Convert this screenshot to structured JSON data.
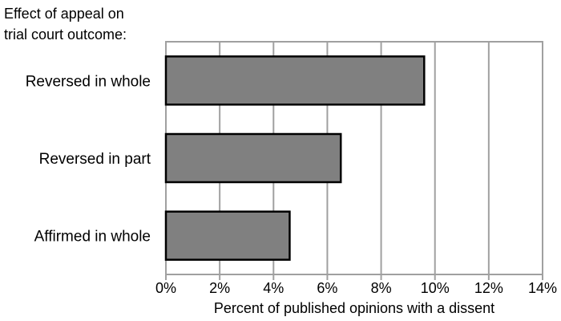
{
  "chart_data": {
    "type": "bar",
    "orientation": "horizontal",
    "title": "",
    "ylabel_lines": [
      "Effect of appeal on",
      "trial court outcome:"
    ],
    "xlabel": "Percent of published opinions with a dissent",
    "categories": [
      "Reversed in whole",
      "Reversed in part",
      "Affirmed in whole"
    ],
    "values": [
      9.6,
      6.5,
      4.6
    ],
    "xlim": [
      0,
      14
    ],
    "xticks": [
      0,
      2,
      4,
      6,
      8,
      10,
      12,
      14
    ],
    "tick_labels": [
      "0%",
      "2%",
      "4%",
      "6%",
      "8%",
      "10%",
      "12%",
      "14%"
    ],
    "grid": "vertical",
    "legend": "none",
    "colors": {
      "bar_fill": "#808080",
      "bar_stroke": "#000000",
      "grid": "#a0a0a0",
      "frame": "#a0a0a0"
    }
  }
}
